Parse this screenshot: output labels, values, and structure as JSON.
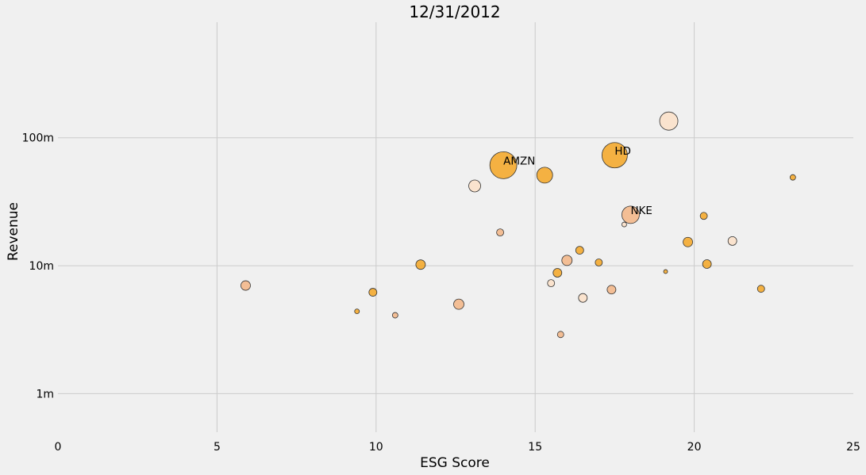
{
  "chart_data": {
    "type": "scatter",
    "title": "12/31/2012",
    "xlabel": "ESG Score",
    "ylabel": "Revenue",
    "xlim": [
      0,
      25
    ],
    "ylim_log": [
      500000,
      800000000
    ],
    "yscale": "log",
    "grid": true,
    "x_ticks": [
      0,
      5,
      10,
      15,
      20,
      25
    ],
    "y_ticks": [
      {
        "value": 1000000,
        "label": "1m"
      },
      {
        "value": 10000000,
        "label": "10m"
      },
      {
        "value": 100000000,
        "label": "100m"
      }
    ],
    "colors": {
      "orange": "#f5a623",
      "light_orange": "#f3b585",
      "peach": "#fbe0c8",
      "edge": "#333333",
      "background": "#f0f0f0",
      "grid": "#cbcbcb"
    },
    "points": [
      {
        "x": 5.9,
        "y": 7000000,
        "size": 6,
        "color": "light_orange"
      },
      {
        "x": 9.4,
        "y": 4400000,
        "size": 3,
        "color": "orange"
      },
      {
        "x": 9.9,
        "y": 6200000,
        "size": 5,
        "color": "orange"
      },
      {
        "x": 10.6,
        "y": 4100000,
        "size": 3.5,
        "color": "light_orange"
      },
      {
        "x": 11.4,
        "y": 10200000,
        "size": 6,
        "color": "orange"
      },
      {
        "x": 12.6,
        "y": 5000000,
        "size": 6.5,
        "color": "light_orange"
      },
      {
        "x": 13.1,
        "y": 42000000,
        "size": 7.5,
        "color": "peach"
      },
      {
        "x": 13.9,
        "y": 18200000,
        "size": 4.5,
        "color": "light_orange"
      },
      {
        "x": 14.0,
        "y": 61000000,
        "size": 17,
        "color": "orange",
        "label": "AMZN"
      },
      {
        "x": 15.3,
        "y": 51000000,
        "size": 10,
        "color": "orange"
      },
      {
        "x": 15.5,
        "y": 7300000,
        "size": 4.5,
        "color": "peach"
      },
      {
        "x": 15.7,
        "y": 8800000,
        "size": 5.5,
        "color": "orange"
      },
      {
        "x": 15.8,
        "y": 2900000,
        "size": 4,
        "color": "light_orange"
      },
      {
        "x": 16.0,
        "y": 11000000,
        "size": 6.5,
        "color": "light_orange"
      },
      {
        "x": 16.4,
        "y": 13200000,
        "size": 5,
        "color": "orange"
      },
      {
        "x": 16.5,
        "y": 5600000,
        "size": 5.5,
        "color": "peach"
      },
      {
        "x": 17.0,
        "y": 10600000,
        "size": 4.5,
        "color": "orange"
      },
      {
        "x": 17.4,
        "y": 6500000,
        "size": 5.5,
        "color": "light_orange"
      },
      {
        "x": 17.5,
        "y": 73000000,
        "size": 16,
        "color": "orange",
        "label": "HD"
      },
      {
        "x": 17.8,
        "y": 21000000,
        "size": 3,
        "color": "peach"
      },
      {
        "x": 18.0,
        "y": 25000000,
        "size": 11,
        "color": "light_orange",
        "label": "NKE"
      },
      {
        "x": 19.1,
        "y": 9000000,
        "size": 2.5,
        "color": "orange"
      },
      {
        "x": 19.2,
        "y": 135000000,
        "size": 11.5,
        "color": "peach"
      },
      {
        "x": 19.8,
        "y": 15300000,
        "size": 6,
        "color": "orange"
      },
      {
        "x": 20.3,
        "y": 24500000,
        "size": 4.5,
        "color": "orange"
      },
      {
        "x": 20.4,
        "y": 10300000,
        "size": 5.5,
        "color": "orange"
      },
      {
        "x": 21.2,
        "y": 15600000,
        "size": 5.5,
        "color": "peach"
      },
      {
        "x": 22.1,
        "y": 6600000,
        "size": 4.5,
        "color": "orange"
      },
      {
        "x": 23.1,
        "y": 49000000,
        "size": 3.5,
        "color": "orange"
      }
    ]
  }
}
